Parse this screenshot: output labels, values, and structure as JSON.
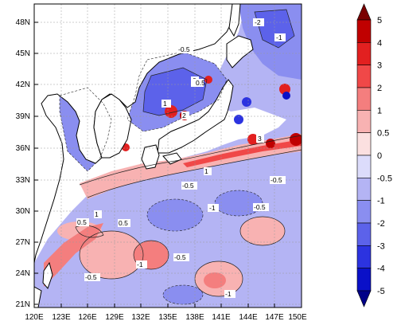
{
  "map": {
    "lat_ticks": [
      "48N",
      "45N",
      "42N",
      "39N",
      "36N",
      "33N",
      "30N",
      "27N",
      "24N",
      "21N"
    ],
    "lon_ticks": [
      "120E",
      "123E",
      "126E",
      "129E",
      "132E",
      "135E",
      "138E",
      "141E",
      "144E",
      "147E",
      "150E"
    ],
    "contour_labels": [
      "-2",
      "-1",
      "-0.5",
      "0",
      "0.5",
      "1",
      "2",
      "3",
      "-0.5",
      "-1",
      "-0.5",
      "1",
      "-1",
      "-0.5",
      "0.5",
      "-0.5",
      "-1",
      "0.5",
      "1",
      "-0.5"
    ]
  },
  "colorbar": {
    "levels": [
      "5",
      "4",
      "3",
      "2",
      "1",
      "0.5",
      "0",
      "-0.5",
      "-1",
      "-2",
      "-3",
      "-4",
      "-5"
    ],
    "colors": [
      "#7a0000",
      "#c00000",
      "#e22020",
      "#f04848",
      "#f47e7e",
      "#f8b2b2",
      "#fbe0e0",
      "#dcdcfb",
      "#b4b4f4",
      "#8a8ef0",
      "#5c62ea",
      "#2c33e0",
      "#0a10c8",
      "#000088"
    ]
  }
}
